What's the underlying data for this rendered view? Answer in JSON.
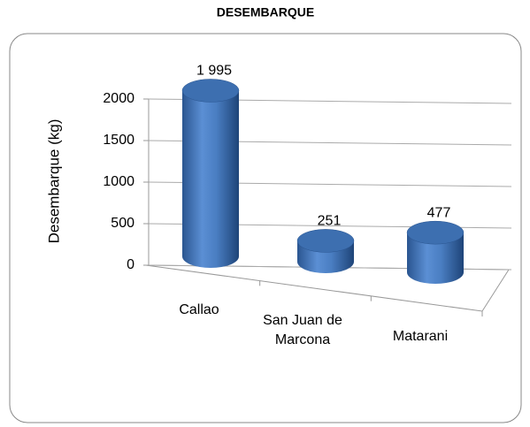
{
  "chart_data": {
    "type": "bar3d",
    "title": "DESEMBARQUE",
    "y_label": "Desembarque (kg)",
    "categories": [
      "Callao",
      "San Juan de Marcona",
      "Matarani"
    ],
    "values": [
      1995,
      251,
      477
    ],
    "value_labels": [
      "1 995",
      "251",
      "477"
    ],
    "color": "#4f81bd",
    "ylim": [
      0,
      2000
    ],
    "yticks": [
      0,
      500,
      1000,
      1500,
      2000
    ],
    "grid": true
  }
}
